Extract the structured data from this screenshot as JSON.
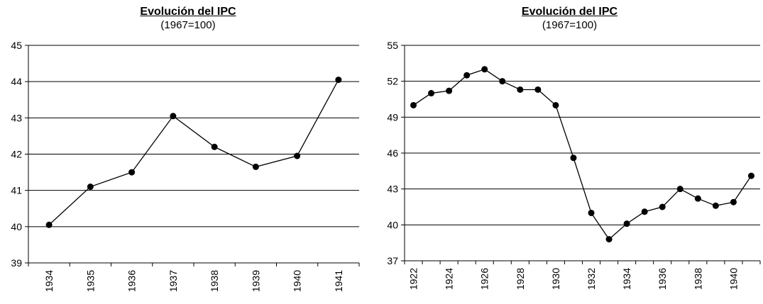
{
  "chart_data": [
    {
      "type": "line",
      "title": "Evolución del IPC",
      "subtitle": "(1967=100)",
      "xlabel": "",
      "ylabel": "",
      "categories": [
        "1934",
        "1935",
        "1936",
        "1937",
        "1938",
        "1939",
        "1940",
        "1941"
      ],
      "x_tick_labels": [
        "1934",
        "1935",
        "1936",
        "1937",
        "1938",
        "1939",
        "1940",
        "1941"
      ],
      "series": [
        {
          "values": [
            40.05,
            41.1,
            41.5,
            43.05,
            42.2,
            41.65,
            41.95,
            44.05
          ]
        }
      ],
      "ylim": [
        39,
        45
      ],
      "y_ticks": [
        39,
        40,
        41,
        42,
        43,
        44,
        45
      ],
      "grid": true,
      "legend": "none"
    },
    {
      "type": "line",
      "title": "Evolución del IPC",
      "subtitle": "(1967=100)",
      "xlabel": "",
      "ylabel": "",
      "categories": [
        "1922",
        "1923",
        "1924",
        "1925",
        "1926",
        "1927",
        "1928",
        "1929",
        "1930",
        "1931",
        "1932",
        "1933",
        "1934",
        "1935",
        "1936",
        "1937",
        "1938",
        "1939",
        "1940",
        "1941"
      ],
      "x_tick_labels": [
        "1922",
        "",
        "1924",
        "",
        "1926",
        "",
        "1928",
        "",
        "1930",
        "",
        "1932",
        "",
        "1934",
        "",
        "1936",
        "",
        "1938",
        "",
        "1940",
        ""
      ],
      "series": [
        {
          "values": [
            50.0,
            51.0,
            51.2,
            52.5,
            53.0,
            52.0,
            51.3,
            51.3,
            50.0,
            45.6,
            41.0,
            38.8,
            40.1,
            41.1,
            41.5,
            43.0,
            42.2,
            41.6,
            41.9,
            44.1
          ]
        }
      ],
      "ylim": [
        37,
        55
      ],
      "y_ticks": [
        37,
        40,
        43,
        46,
        49,
        52,
        55
      ],
      "grid": true,
      "legend": "none"
    }
  ]
}
